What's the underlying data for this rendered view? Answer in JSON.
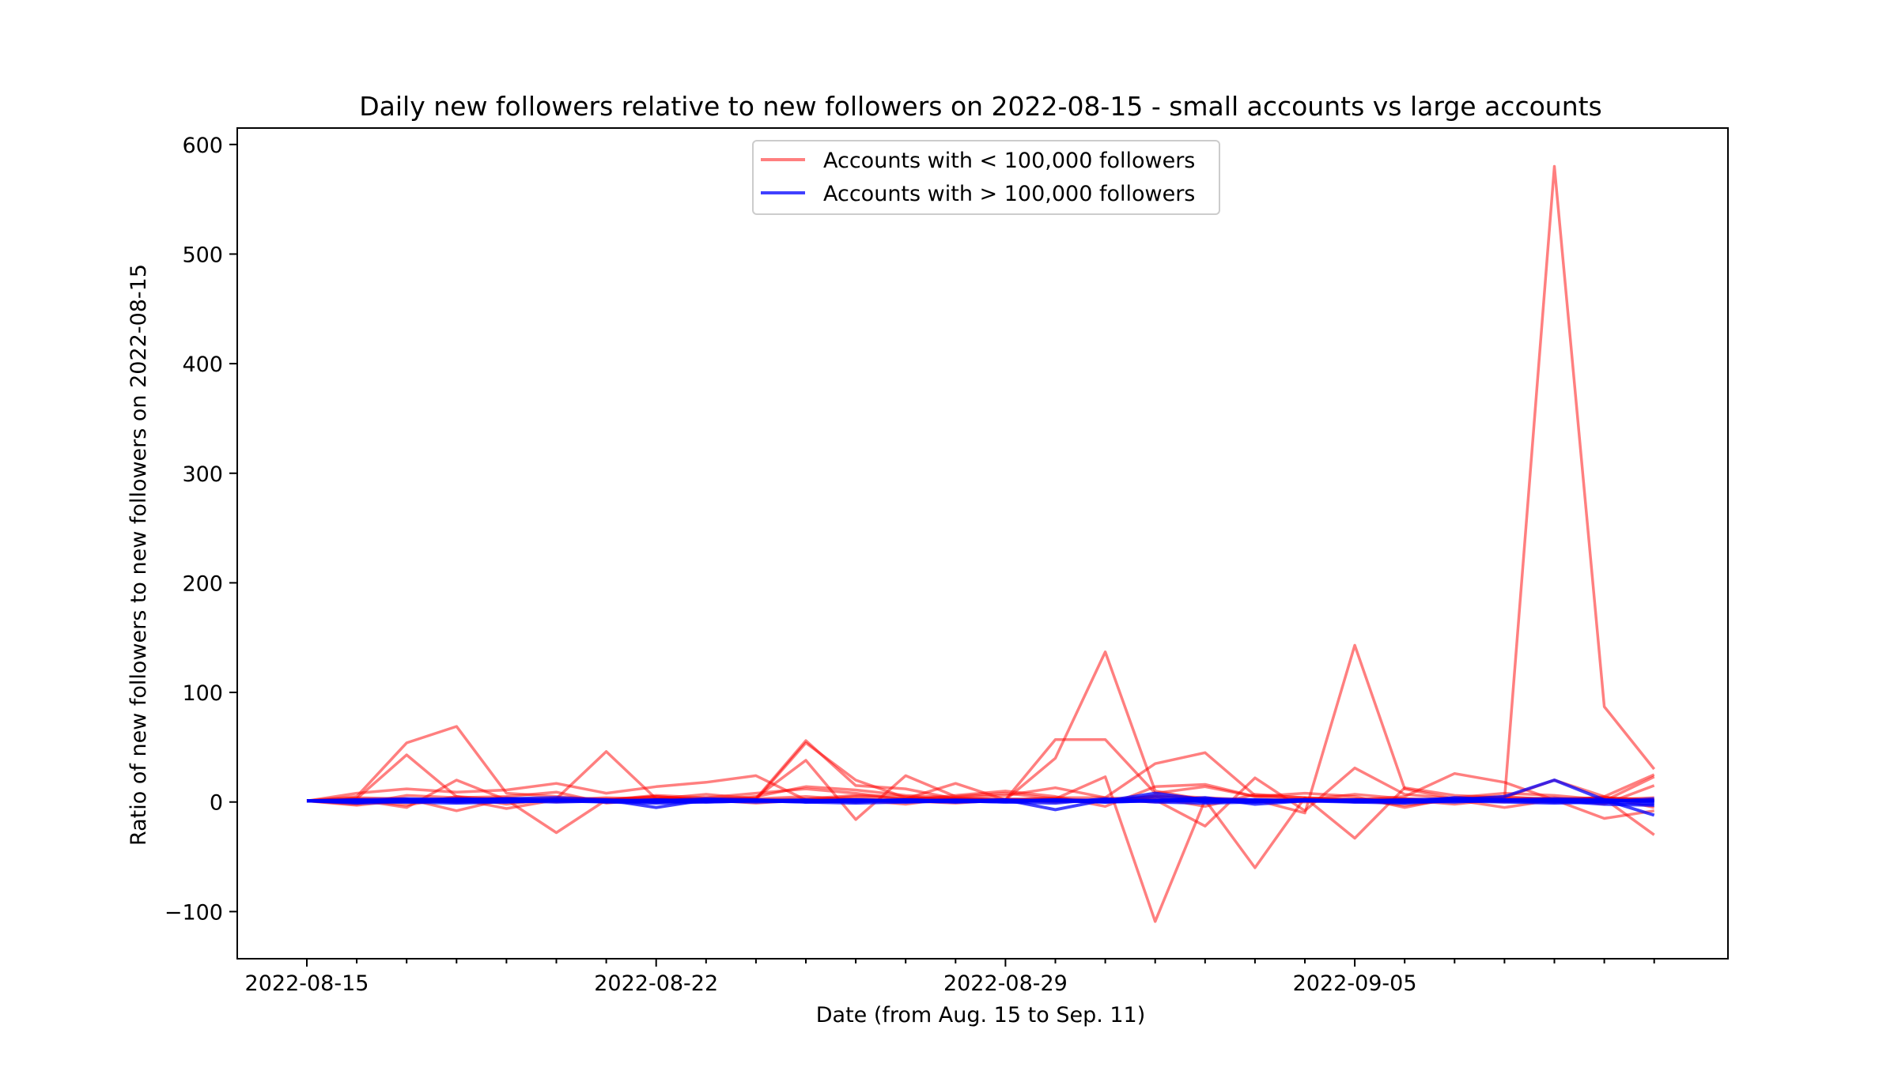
{
  "chart_data": {
    "type": "line",
    "title": "Daily new followers relative to new followers on 2022-08-15 - small accounts vs large accounts",
    "xlabel": "Date (from Aug. 15 to Sep. 11)",
    "ylabel": "Ratio of new followers to new followers on 2022-08-15",
    "x": [
      "2022-08-15",
      "2022-08-16",
      "2022-08-17",
      "2022-08-18",
      "2022-08-19",
      "2022-08-20",
      "2022-08-21",
      "2022-08-22",
      "2022-08-23",
      "2022-08-24",
      "2022-08-25",
      "2022-08-26",
      "2022-08-27",
      "2022-08-28",
      "2022-08-29",
      "2022-08-30",
      "2022-08-31",
      "2022-09-01",
      "2022-09-02",
      "2022-09-03",
      "2022-09-04",
      "2022-09-05",
      "2022-09-06",
      "2022-09-07",
      "2022-09-08",
      "2022-09-09",
      "2022-09-10",
      "2022-09-11"
    ],
    "x_tick_labels": [
      "2022-08-15",
      "2022-08-22",
      "2022-08-29",
      "2022-09-05"
    ],
    "y_ticks": [
      -100,
      0,
      100,
      200,
      300,
      400,
      500,
      600
    ],
    "y_tick_labels": [
      "−100",
      "0",
      "100",
      "200",
      "300",
      "400",
      "500",
      "600"
    ],
    "ylim": [
      -143,
      615
    ],
    "grid": false,
    "legend_position": "top-center",
    "legend": [
      {
        "label": "Accounts with < 100,000 followers",
        "color": "#ff0000"
      },
      {
        "label": "Accounts with > 100,000 followers",
        "color": "#0000ff"
      }
    ],
    "series": [
      {
        "group": "small",
        "color": "#ff0000",
        "values": [
          1,
          5,
          54,
          69,
          8,
          5,
          2,
          5,
          2,
          3,
          56,
          15,
          12,
          3,
          2,
          57,
          57,
          8,
          14,
          5,
          2,
          7,
          3,
          2,
          2,
          580,
          87,
          30
        ]
      },
      {
        "group": "small",
        "color": "#ff0000",
        "values": [
          1,
          3,
          43,
          5,
          -2,
          3,
          46,
          3,
          2,
          2,
          54,
          20,
          4,
          3,
          2,
          40,
          137,
          10,
          2,
          2,
          -10,
          143,
          12,
          3,
          4,
          20,
          5,
          25
        ]
      },
      {
        "group": "small",
        "color": "#ff0000",
        "values": [
          1,
          2,
          -5,
          20,
          2,
          -28,
          2,
          5,
          2,
          4,
          38,
          -16,
          24,
          5,
          8,
          3,
          23,
          -109,
          2,
          -60,
          4,
          2,
          5,
          26,
          18,
          2,
          3,
          -30
        ]
      },
      {
        "group": "small",
        "color": "#ff0000",
        "values": [
          1,
          8,
          12,
          9,
          11,
          17,
          8,
          14,
          18,
          24,
          2,
          5,
          3,
          17,
          2,
          4,
          4,
          35,
          45,
          6,
          4,
          -33,
          13,
          6,
          4,
          3,
          4,
          2
        ]
      },
      {
        "group": "small",
        "color": "#ff0000",
        "values": [
          1,
          -3,
          2,
          3,
          -6,
          2,
          4,
          3,
          2,
          5,
          14,
          11,
          6,
          4,
          6,
          13,
          4,
          2,
          -22,
          22,
          -8,
          31,
          7,
          3,
          5,
          2,
          -15,
          -8
        ]
      },
      {
        "group": "small",
        "color": "#ff0000",
        "values": [
          1,
          4,
          3,
          -8,
          3,
          3,
          2,
          6,
          4,
          8,
          12,
          8,
          2,
          6,
          10,
          5,
          -4,
          14,
          16,
          5,
          8,
          5,
          -5,
          4,
          8,
          6,
          2,
          4
        ]
      },
      {
        "group": "small",
        "color": "#ff0000",
        "values": [
          1,
          -2,
          6,
          4,
          5,
          9,
          -1,
          3,
          7,
          3,
          5,
          2,
          -2,
          4,
          2,
          0,
          2,
          4,
          -4,
          7,
          4,
          2,
          -3,
          2,
          -5,
          2,
          4,
          2
        ]
      },
      {
        "group": "small",
        "color": "#ff0000",
        "values": [
          1,
          2,
          -3,
          5,
          2,
          3,
          0,
          2,
          4,
          2,
          3,
          6,
          5,
          2,
          3,
          2,
          0,
          5,
          3,
          1,
          2,
          3,
          2,
          -2,
          3,
          0,
          5,
          -5
        ]
      },
      {
        "group": "small",
        "color": "#ff0000",
        "values": [
          1,
          3,
          2,
          0,
          1,
          2,
          3,
          1,
          2,
          -1,
          2,
          3,
          1,
          -1,
          2,
          3,
          1,
          6,
          4,
          2,
          0,
          2,
          3,
          1,
          2,
          4,
          -2,
          15
        ]
      },
      {
        "group": "small",
        "color": "#ff0000",
        "values": [
          1,
          0,
          1,
          2,
          4,
          0,
          2,
          1,
          0,
          2,
          1,
          0,
          3,
          2,
          1,
          1,
          2,
          0,
          2,
          1,
          3,
          0,
          1,
          2,
          0,
          3,
          1,
          23
        ]
      },
      {
        "group": "large",
        "color": "#0000ff",
        "values": [
          1,
          2,
          3,
          2,
          3,
          4,
          2,
          -5,
          2,
          1,
          2,
          0,
          2,
          1,
          2,
          -7,
          2,
          1,
          3,
          2,
          1,
          2,
          1,
          2,
          5,
          20,
          2,
          -12
        ]
      },
      {
        "group": "large",
        "color": "#0000ff",
        "values": [
          1,
          1,
          2,
          3,
          2,
          1,
          2,
          1,
          3,
          2,
          1,
          2,
          1,
          2,
          1,
          2,
          1,
          8,
          2,
          1,
          2,
          1,
          2,
          3,
          2,
          3,
          2,
          1
        ]
      },
      {
        "group": "large",
        "color": "#0000ff",
        "values": [
          1,
          0,
          1,
          2,
          1,
          0,
          1,
          2,
          1,
          0,
          1,
          2,
          1,
          0,
          1,
          2,
          0,
          1,
          4,
          -2,
          1,
          2,
          1,
          0,
          2,
          1,
          -2,
          -3
        ]
      },
      {
        "group": "large",
        "color": "#0000ff",
        "values": [
          1,
          1,
          1,
          1,
          2,
          1,
          1,
          1,
          0,
          1,
          1,
          1,
          2,
          1,
          1,
          1,
          2,
          1,
          1,
          2,
          1,
          1,
          2,
          1,
          1,
          2,
          1,
          1
        ]
      },
      {
        "group": "large",
        "color": "#0000ff",
        "values": [
          1,
          -1,
          0,
          -1,
          0,
          2,
          0,
          -1,
          0,
          1,
          0,
          -1,
          0,
          1,
          0,
          -1,
          3,
          0,
          -1,
          0,
          1,
          0,
          -1,
          1,
          0,
          -1,
          0,
          -2
        ]
      },
      {
        "group": "large",
        "color": "#0000ff",
        "values": [
          1,
          2,
          0,
          1,
          3,
          1,
          0,
          2,
          1,
          2,
          0,
          1,
          2,
          1,
          0,
          2,
          1,
          5,
          0,
          1,
          2,
          1,
          0,
          4,
          2,
          1,
          0,
          3
        ]
      },
      {
        "group": "large",
        "color": "#0000ff",
        "values": [
          1,
          1,
          2,
          0,
          1,
          2,
          1,
          0,
          2,
          1,
          1,
          2,
          0,
          1,
          2,
          1,
          0,
          2,
          1,
          1,
          2,
          0,
          1,
          2,
          1,
          1,
          2,
          0
        ]
      },
      {
        "group": "large",
        "color": "#0000ff",
        "values": [
          1,
          0,
          1,
          1,
          0,
          1,
          1,
          0,
          1,
          1,
          0,
          1,
          1,
          0,
          1,
          1,
          0,
          1,
          1,
          0,
          1,
          1,
          0,
          1,
          1,
          0,
          1,
          1
        ]
      }
    ]
  }
}
